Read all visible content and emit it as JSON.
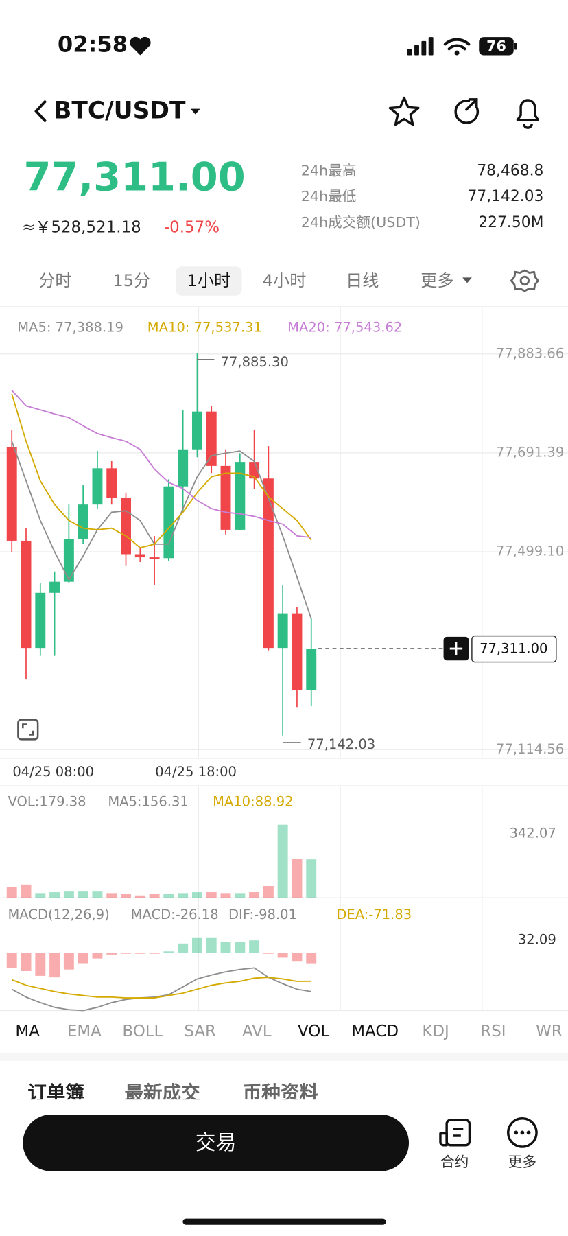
{
  "status_bar": {
    "time": "02:58",
    "battery": "76"
  },
  "header": {
    "pair": "BTC/USDT"
  },
  "price": {
    "last": "77,311.00",
    "fiat": "≈￥528,521.18",
    "change": "-0.57%"
  },
  "stats": [
    {
      "label": "24h最高",
      "value": "78,468.8"
    },
    {
      "label": "24h最低",
      "value": "77,142.03"
    },
    {
      "label": "24h成交额(USDT)",
      "value": "227.50M"
    }
  ],
  "timeframes": {
    "items": [
      "分时",
      "15分",
      "1小时",
      "4小时",
      "日线",
      "更多"
    ],
    "active": 2
  },
  "chart": {
    "type": "candlestick",
    "up_color": "#2ebd85",
    "down_color": "#f0464a",
    "ma_legend": [
      "MA5: 77,388.19",
      "MA10: 77,537.31",
      "MA20: 77,543.62"
    ],
    "ma_colors": [
      "#8e8e8e",
      "#d4a900",
      "#c77dd6"
    ],
    "open": [
      77702.9,
      77520.6,
      77312.2,
      77419.4,
      77440.9,
      77523.6,
      77591.0,
      77661.5,
      77603.3,
      77494.5,
      77488.4,
      77486.8,
      77626.3,
      77698.3,
      77771.8,
      77666.1,
      77542.0,
      77673.8,
      77641.6,
      77312.2,
      77379.6,
      77231.0
    ],
    "high": [
      77736.6,
      77545.1,
      77437.8,
      77460.8,
      77591.0,
      77629.3,
      77695.2,
      77675.3,
      77614.0,
      77506.8,
      77529.8,
      77640.1,
      77774.9,
      77885.3,
      77782.6,
      77698.3,
      77690.6,
      77736.6,
      77704.4,
      77434.8,
      77391.9,
      77370.4
    ],
    "low": [
      77499.1,
      77250.9,
      77296.9,
      77296.9,
      77437.8,
      77514.4,
      77583.4,
      77591.0,
      77471.5,
      77479.2,
      77434.8,
      77480.7,
      77575.7,
      77683.0,
      77652.3,
      77532.8,
      77540.5,
      77621.7,
      77307.6,
      77142.03,
      77197.3,
      77200.4
    ],
    "close": [
      77520.6,
      77312.2,
      77419.4,
      77440.9,
      77523.6,
      77591.0,
      77661.5,
      77603.3,
      77494.5,
      77488.4,
      77485.3,
      77626.3,
      77698.3,
      77771.8,
      77666.1,
      77542.0,
      77673.8,
      77641.6,
      77312.2,
      77379.6,
      77231.0,
      77311
    ],
    "ma5": [
      77714,
      77637,
      77560,
      77499,
      77445,
      77491,
      77542,
      77576,
      77579,
      77560,
      77514,
      77514,
      77583,
      77645,
      77686,
      77691,
      77695,
      77675,
      77603,
      77530,
      77450,
      77369
    ],
    "ma10": [
      77806,
      77714,
      77637,
      77591,
      77560,
      77545,
      77542,
      77545,
      77530,
      77507,
      77514,
      77545,
      77576,
      77614,
      77645,
      77652,
      77652,
      77645,
      77606,
      77583,
      77560,
      77522
    ],
    "ma20": [
      77813,
      77783,
      77775,
      77767,
      77760,
      77744,
      77729,
      77721,
      77714,
      77698,
      77660,
      77634,
      77622,
      77599,
      77583,
      77576,
      77573,
      77568,
      77560,
      77553,
      77530,
      77527
    ],
    "ylim": [
      77097.7,
      77974.1
    ],
    "yticks": [
      {
        "value": 77883.66,
        "label": "77,883.66"
      },
      {
        "value": 77691.39,
        "label": "77,691.39"
      },
      {
        "value": 77499.1,
        "label": "77,499.10"
      },
      {
        "value": 77114.56,
        "label": "77,114.56"
      }
    ],
    "high_label": "77,885.30",
    "low_label": "77,142.03",
    "current_price": {
      "value": 77311,
      "label": "77,311.00"
    },
    "x_labels": [
      "04/25 08:00",
      "04/25 18:00"
    ]
  },
  "volume": {
    "legend": [
      "VOL:179.38",
      "MA5:156.31",
      "MA10:88.92"
    ],
    "values": [
      51,
      62,
      22,
      26,
      29,
      29,
      29,
      22,
      18,
      11,
      18,
      18,
      22,
      26,
      26,
      22,
      22,
      26,
      55,
      341,
      183,
      179.38
    ],
    "ylim": [
      0,
      342.07
    ],
    "yticks": [
      342.07
    ]
  },
  "macd": {
    "legend": [
      "MACD(12,26,9)",
      "MACD:-26.18",
      "DIF:-98.01",
      "DEA:-71.83"
    ],
    "hist": [
      -38,
      -46,
      -58,
      -62,
      -42,
      -26,
      -14,
      -4,
      -2,
      -2,
      -2,
      4,
      24,
      38,
      38,
      28,
      28,
      32,
      -2,
      -12,
      -22,
      -26.18
    ],
    "dif": [
      -92,
      -112,
      -126,
      -138,
      -144,
      -146,
      -138,
      -126,
      -118,
      -114,
      -112,
      -106,
      -86,
      -66,
      -56,
      -48,
      -42,
      -38,
      -62,
      -78,
      -92,
      -98.01
    ],
    "dea": [
      -68,
      -82,
      -90,
      -98,
      -104,
      -108,
      -112,
      -112,
      -114,
      -114,
      -114,
      -108,
      -102,
      -92,
      -82,
      -76,
      -72,
      -64,
      -62,
      -66,
      -72,
      -71.83
    ],
    "ylim": [
      -150,
      120
    ],
    "yticks": [
      32.09
    ]
  },
  "indicator_tabs": {
    "items": [
      "MA",
      "EMA",
      "BOLL",
      "SAR",
      "AVL",
      "VOL",
      "MACD",
      "KDJ",
      "RSI",
      "WR"
    ],
    "active": [
      0,
      5,
      6
    ]
  },
  "section_tabs": [
    "订单簿",
    "最新成交",
    "币种资料"
  ],
  "bottom_bar": {
    "trade": "交易",
    "contract": "合约",
    "more": "更多"
  }
}
